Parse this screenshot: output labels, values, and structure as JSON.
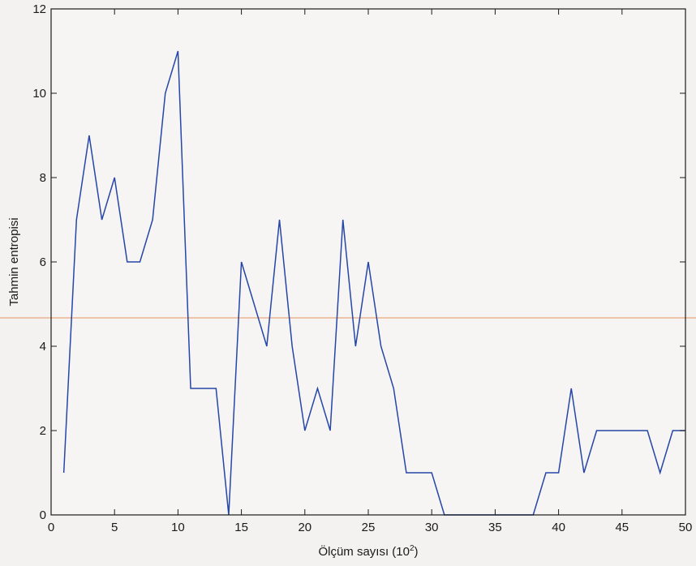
{
  "chart_data": {
    "type": "line",
    "title": "",
    "xlabel": "Ölçüm sayısı (10",
    "xlabel_superscript": "2",
    "xlabel_suffix": ")",
    "ylabel": "Tahmin entropisi",
    "xlim": [
      0,
      50
    ],
    "ylim": [
      0,
      12
    ],
    "xticks": [
      0,
      5,
      10,
      15,
      20,
      25,
      30,
      35,
      40,
      45,
      50
    ],
    "yticks": [
      0,
      2,
      4,
      6,
      8,
      10,
      12
    ],
    "grid": false,
    "series": [
      {
        "color": "#2646a8",
        "x": [
          1,
          2,
          3,
          4,
          5,
          6,
          7,
          8,
          9,
          10,
          11,
          12,
          13,
          14,
          15,
          16,
          17,
          18,
          19,
          20,
          21,
          22,
          23,
          24,
          25,
          26,
          27,
          28,
          29,
          30,
          31,
          32,
          33,
          34,
          35,
          36,
          37,
          38,
          39,
          40,
          41,
          42,
          43,
          44,
          45,
          46,
          47,
          48,
          49,
          50
        ],
        "y": [
          1,
          7,
          9,
          7,
          8,
          6,
          6,
          7,
          10,
          11,
          3,
          3,
          3,
          0,
          6,
          5,
          4,
          7,
          4,
          2,
          3,
          2,
          7,
          4,
          6,
          4,
          3,
          1,
          1,
          1,
          0,
          0,
          0,
          0,
          0,
          0,
          0,
          0,
          1,
          1,
          3,
          1,
          2,
          2,
          2,
          2,
          2,
          1,
          2,
          2
        ]
      }
    ]
  }
}
